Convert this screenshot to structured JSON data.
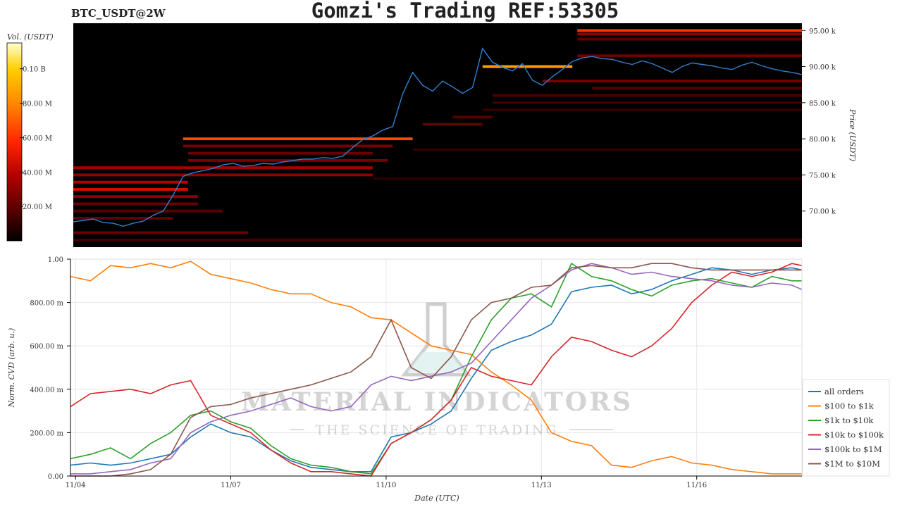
{
  "header": {
    "pair": "BTC_USDT@2W",
    "title": "Gomzi's Trading REF:53305"
  },
  "colors": {
    "cvd_series": [
      "#1f77b4",
      "#ff7f0e",
      "#2ca02c",
      "#d62728",
      "#9467bd",
      "#8c564b"
    ],
    "price_line": "#2f7fd0",
    "heatmap_bg": "#000000",
    "colorbar": [
      "#000000",
      "#5a0000",
      "#b40000",
      "#ff2600",
      "#ff8a00",
      "#ffd000",
      "#ffffd0"
    ]
  },
  "watermark": {
    "line1": "MATERIAL INDICATORS",
    "line2": "THE SCIENCE OF TRADING",
    "icon": "flask-icon"
  },
  "chart_data": [
    {
      "type": "heatmap",
      "title": "",
      "colorbar_label": "Vol. (USDT)",
      "colorbar_ticks": [
        {
          "value": 100000000,
          "label": "0.10 B"
        },
        {
          "value": 80000000,
          "label": "80.00 M"
        },
        {
          "value": 60000000,
          "label": "60.00 M"
        },
        {
          "value": 40000000,
          "label": "40.00 M"
        },
        {
          "value": 20000000,
          "label": "20.00 M"
        }
      ],
      "colorbar_range": [
        0,
        115000000
      ],
      "ylabel": "Price (USDT)",
      "yaxis_side": "right",
      "ylim": [
        65000,
        96000
      ],
      "y_ticks": [
        {
          "value": 70000,
          "label": "70.00 k"
        },
        {
          "value": 75000,
          "label": "75.00 k"
        },
        {
          "value": 80000,
          "label": "80.00 k"
        },
        {
          "value": 85000,
          "label": "85.00 k"
        },
        {
          "value": 90000,
          "label": "90.00 k"
        },
        {
          "value": 95000,
          "label": "95.00 k"
        }
      ],
      "xlim": [
        0,
        14.6
      ],
      "price_series": {
        "x": [
          0,
          0.2,
          0.4,
          0.6,
          0.8,
          1,
          1.2,
          1.4,
          1.6,
          1.8,
          2,
          2.2,
          2.4,
          2.6,
          2.8,
          3,
          3.2,
          3.4,
          3.6,
          3.8,
          4,
          4.2,
          4.4,
          4.6,
          4.8,
          5,
          5.2,
          5.4,
          5.6,
          5.8,
          6,
          6.2,
          6.4,
          6.6,
          6.8,
          7,
          7.2,
          7.4,
          7.6,
          7.8,
          8,
          8.2,
          8.4,
          8.6,
          8.8,
          9,
          9.2,
          9.4,
          9.6,
          9.8,
          10,
          10.2,
          10.4,
          10.6,
          10.8,
          11,
          11.2,
          11.4,
          11.6,
          11.8,
          12,
          12.2,
          12.4,
          12.6,
          12.8,
          13,
          13.2,
          13.4,
          13.6,
          13.8,
          14,
          14.2,
          14.4,
          14.6
        ],
        "y": [
          68500,
          68700,
          68900,
          68400,
          68300,
          67900,
          68300,
          68600,
          69400,
          70000,
          72200,
          74800,
          75300,
          75600,
          75900,
          76400,
          76600,
          76200,
          76300,
          76600,
          76500,
          76800,
          77000,
          77200,
          77200,
          77400,
          77300,
          77600,
          78800,
          79900,
          80400,
          81200,
          81700,
          86200,
          89200,
          87400,
          86600,
          88000,
          87200,
          86300,
          87100,
          92500,
          90600,
          89900,
          89400,
          90400,
          88100,
          87400,
          88600,
          89600,
          90700,
          91200,
          91400,
          91100,
          91000,
          90600,
          90300,
          90800,
          90400,
          89800,
          89200,
          90000,
          90500,
          90300,
          90100,
          89800,
          89600,
          90200,
          90600,
          90100,
          89700,
          89400,
          89200,
          88900
        ]
      },
      "walls": [
        {
          "price": 95000,
          "x_start": 10.1,
          "x_end": 14.6,
          "volume": 60000000
        },
        {
          "price": 94500,
          "x_start": 10.1,
          "x_end": 14.6,
          "volume": 30000000
        },
        {
          "price": 93800,
          "x_start": 10.1,
          "x_end": 14.6,
          "volume": 20000000
        },
        {
          "price": 91500,
          "x_start": 10.1,
          "x_end": 14.6,
          "volume": 22000000
        },
        {
          "price": 90000,
          "x_start": 8.2,
          "x_end": 10.0,
          "volume": 85000000
        },
        {
          "price": 88000,
          "x_start": 9.4,
          "x_end": 14.6,
          "volume": 25000000
        },
        {
          "price": 87000,
          "x_start": 10.4,
          "x_end": 14.6,
          "volume": 18000000
        },
        {
          "price": 86000,
          "x_start": 8.4,
          "x_end": 14.6,
          "volume": 15000000
        },
        {
          "price": 85000,
          "x_start": 8.4,
          "x_end": 14.6,
          "volume": 12000000
        },
        {
          "price": 80000,
          "x_start": 2.2,
          "x_end": 6.8,
          "volume": 65000000
        },
        {
          "price": 79000,
          "x_start": 2.2,
          "x_end": 6.4,
          "volume": 25000000
        },
        {
          "price": 78000,
          "x_start": 2.3,
          "x_end": 6.0,
          "volume": 22000000
        },
        {
          "price": 77000,
          "x_start": 2.3,
          "x_end": 6.3,
          "volume": 25000000
        },
        {
          "price": 76000,
          "x_start": 0.0,
          "x_end": 6.0,
          "volume": 35000000
        },
        {
          "price": 75000,
          "x_start": 0.0,
          "x_end": 6.0,
          "volume": 30000000
        },
        {
          "price": 74000,
          "x_start": 0.0,
          "x_end": 2.3,
          "volume": 38000000
        },
        {
          "price": 73000,
          "x_start": 0.0,
          "x_end": 2.3,
          "volume": 45000000
        },
        {
          "price": 72000,
          "x_start": 0.0,
          "x_end": 2.5,
          "volume": 30000000
        },
        {
          "price": 71000,
          "x_start": 0.0,
          "x_end": 2.5,
          "volume": 22000000
        },
        {
          "price": 70000,
          "x_start": 0.0,
          "x_end": 3.0,
          "volume": 18000000
        },
        {
          "price": 69000,
          "x_start": 0.0,
          "x_end": 2.0,
          "volume": 20000000
        },
        {
          "price": 67000,
          "x_start": 0.0,
          "x_end": 3.5,
          "volume": 22000000
        },
        {
          "price": 66000,
          "x_start": 0.0,
          "x_end": 14.6,
          "volume": 14000000
        },
        {
          "price": 82000,
          "x_start": 7.0,
          "x_end": 8.2,
          "volume": 20000000
        },
        {
          "price": 83000,
          "x_start": 7.6,
          "x_end": 8.4,
          "volume": 18000000
        },
        {
          "price": 78500,
          "x_start": 6.8,
          "x_end": 14.6,
          "volume": 10000000
        },
        {
          "price": 74500,
          "x_start": 6.0,
          "x_end": 14.6,
          "volume": 9000000
        },
        {
          "price": 84000,
          "x_start": 8.2,
          "x_end": 14.6,
          "volume": 10000000
        }
      ]
    },
    {
      "type": "line",
      "title": "",
      "xlabel": "Date (UTC)",
      "ylabel": "Norm. CVD (arb. u.)",
      "ylim": [
        0,
        1
      ],
      "xlim": [
        0,
        14.6
      ],
      "y_ticks": [
        {
          "value": 0,
          "label": "0.00"
        },
        {
          "value": 0.2,
          "label": "200.00 m"
        },
        {
          "value": 0.4,
          "label": "400.00 m"
        },
        {
          "value": 0.6,
          "label": "600.00 m"
        },
        {
          "value": 0.8,
          "label": "800.00 m"
        },
        {
          "value": 1.0,
          "label": "1.00"
        }
      ],
      "x_ticks": [
        {
          "value": 0.1,
          "label": "11/04"
        },
        {
          "value": 3.2,
          "label": "11/07"
        },
        {
          "value": 6.3,
          "label": "11/10"
        },
        {
          "value": 9.4,
          "label": "11/13"
        },
        {
          "value": 12.5,
          "label": "11/16"
        }
      ],
      "grid": true,
      "legend_position": "bottom-right",
      "x": [
        0,
        0.4,
        0.8,
        1.2,
        1.6,
        2,
        2.4,
        2.8,
        3.2,
        3.6,
        4,
        4.4,
        4.8,
        5.2,
        5.6,
        6,
        6.4,
        6.8,
        7.2,
        7.6,
        8,
        8.4,
        8.8,
        9.2,
        9.6,
        10,
        10.4,
        10.8,
        11.2,
        11.6,
        12,
        12.4,
        12.8,
        13.2,
        13.6,
        14,
        14.4,
        14.6
      ],
      "series": [
        {
          "name": "all orders",
          "values": [
            0.05,
            0.06,
            0.05,
            0.06,
            0.08,
            0.1,
            0.18,
            0.24,
            0.2,
            0.18,
            0.12,
            0.07,
            0.04,
            0.03,
            0.02,
            0.02,
            0.18,
            0.2,
            0.24,
            0.3,
            0.45,
            0.58,
            0.62,
            0.65,
            0.7,
            0.85,
            0.87,
            0.88,
            0.84,
            0.86,
            0.9,
            0.93,
            0.96,
            0.95,
            0.93,
            0.95,
            0.96,
            0.95
          ]
        },
        {
          "name": "$100 to $1k",
          "values": [
            0.92,
            0.9,
            0.97,
            0.96,
            0.98,
            0.96,
            0.99,
            0.93,
            0.91,
            0.89,
            0.86,
            0.84,
            0.84,
            0.8,
            0.78,
            0.73,
            0.72,
            0.66,
            0.6,
            0.58,
            0.56,
            0.48,
            0.42,
            0.35,
            0.2,
            0.16,
            0.14,
            0.05,
            0.04,
            0.07,
            0.09,
            0.06,
            0.05,
            0.03,
            0.02,
            0.01,
            0.01,
            0.01
          ]
        },
        {
          "name": "$1k to $10k",
          "values": [
            0.08,
            0.1,
            0.13,
            0.08,
            0.15,
            0.2,
            0.28,
            0.3,
            0.25,
            0.22,
            0.14,
            0.08,
            0.05,
            0.04,
            0.02,
            0.01,
            0.15,
            0.2,
            0.26,
            0.35,
            0.55,
            0.72,
            0.82,
            0.84,
            0.78,
            0.98,
            0.92,
            0.9,
            0.86,
            0.83,
            0.88,
            0.9,
            0.91,
            0.89,
            0.87,
            0.92,
            0.9,
            0.9
          ]
        },
        {
          "name": "$10k to $100k",
          "values": [
            0.32,
            0.38,
            0.39,
            0.4,
            0.38,
            0.42,
            0.44,
            0.28,
            0.24,
            0.2,
            0.12,
            0.06,
            0.02,
            0.02,
            0.01,
            0.0,
            0.15,
            0.2,
            0.26,
            0.35,
            0.5,
            0.46,
            0.44,
            0.42,
            0.55,
            0.64,
            0.62,
            0.58,
            0.55,
            0.6,
            0.68,
            0.8,
            0.88,
            0.94,
            0.92,
            0.94,
            0.98,
            0.97
          ]
        },
        {
          "name": "$100k to $1M",
          "values": [
            0.01,
            0.01,
            0.02,
            0.03,
            0.06,
            0.08,
            0.2,
            0.25,
            0.28,
            0.3,
            0.33,
            0.36,
            0.32,
            0.3,
            0.32,
            0.42,
            0.46,
            0.44,
            0.46,
            0.48,
            0.52,
            0.62,
            0.72,
            0.82,
            0.88,
            0.95,
            0.98,
            0.96,
            0.93,
            0.94,
            0.92,
            0.91,
            0.9,
            0.88,
            0.87,
            0.89,
            0.88,
            0.86
          ]
        },
        {
          "name": "$1M to $10M",
          "values": [
            0.0,
            0.0,
            0.0,
            0.01,
            0.03,
            0.1,
            0.27,
            0.32,
            0.33,
            0.36,
            0.38,
            0.4,
            0.42,
            0.45,
            0.48,
            0.55,
            0.72,
            0.5,
            0.45,
            0.55,
            0.72,
            0.8,
            0.82,
            0.87,
            0.88,
            0.96,
            0.97,
            0.96,
            0.96,
            0.98,
            0.98,
            0.96,
            0.95,
            0.95,
            0.95,
            0.95,
            0.95,
            0.95
          ]
        }
      ]
    }
  ]
}
